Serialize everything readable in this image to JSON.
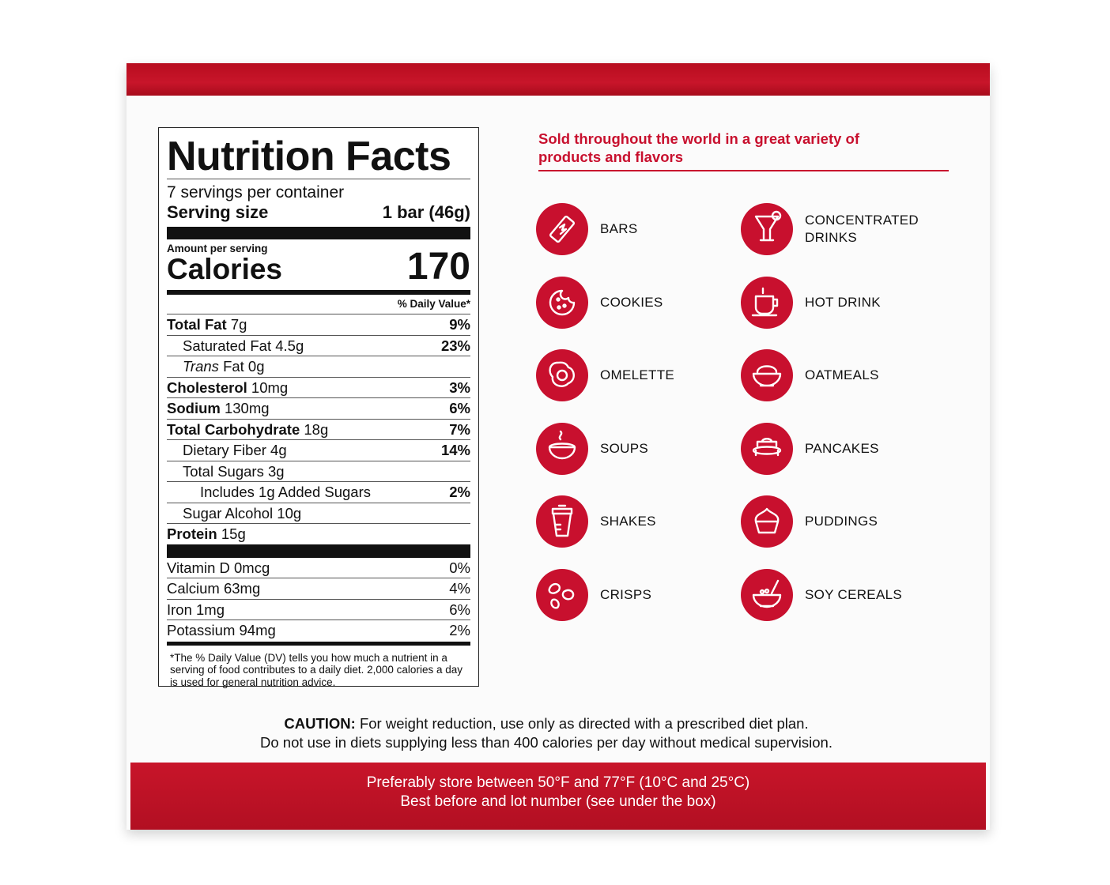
{
  "nutrition": {
    "title": "Nutrition Facts",
    "servings": "7 servings per container",
    "serving_size_label": "Serving size",
    "serving_size": "1 bar (46g)",
    "amount_per_serving": "Amount per serving",
    "calories_label": "Calories",
    "calories": "170",
    "dv_header": "% Daily Value*",
    "rows": [
      {
        "name": "Total Fat",
        "amount": "7g",
        "dv": "9%"
      },
      {
        "name": "Saturated Fat 4.5g",
        "dv": "23%"
      },
      {
        "name": "Trans",
        "amount": "Fat 0g"
      },
      {
        "name": "Cholesterol",
        "amount": "10mg",
        "dv": "3%"
      },
      {
        "name": "Sodium",
        "amount": "130mg",
        "dv": "6%"
      },
      {
        "name": "Total Carbohydrate",
        "amount": "18g",
        "dv": "7%"
      },
      {
        "name": "Dietary Fiber 4g",
        "dv": "14%"
      },
      {
        "name": "Total Sugars 3g"
      },
      {
        "name": "Includes 1g Added Sugars",
        "dv": "2%"
      },
      {
        "name": "Sugar Alcohol 10g"
      },
      {
        "name": "Protein",
        "amount": "15g"
      }
    ],
    "vitamins": [
      {
        "name": "Vitamin D 0mcg",
        "dv": "0%"
      },
      {
        "name": "Calcium 63mg",
        "dv": "4%"
      },
      {
        "name": "Iron 1mg",
        "dv": "6%"
      },
      {
        "name": "Potassium 94mg",
        "dv": "2%"
      }
    ],
    "footnote": "*The % Daily Value (DV) tells you how much a nutrient in a serving of food contributes to a daily diet. 2,000 calories a day is used for general nutrition advice."
  },
  "products": {
    "heading": "Sold throughout the world in a great variety of products and flavors",
    "items": [
      "BARS",
      "CONCENTRATED DRINKS",
      "COOKIES",
      "HOT DRINK",
      "OMELETTE",
      "OATMEALS",
      "SOUPS",
      "PANCAKES",
      "SHAKES",
      "PUDDINGS",
      "CRISPS",
      "SOY CEREALS"
    ]
  },
  "caution": {
    "label": "CAUTION:",
    "line1": "For weight reduction, use only as directed with a prescribed diet plan.",
    "line2": "Do not use in diets supplying less than 400 calories per day without medical supervision."
  },
  "storage": {
    "line1": "Preferably store between 50°F and 77°F (10°C and 25°C)",
    "line2": "Best before and lot number (see under the box)"
  }
}
